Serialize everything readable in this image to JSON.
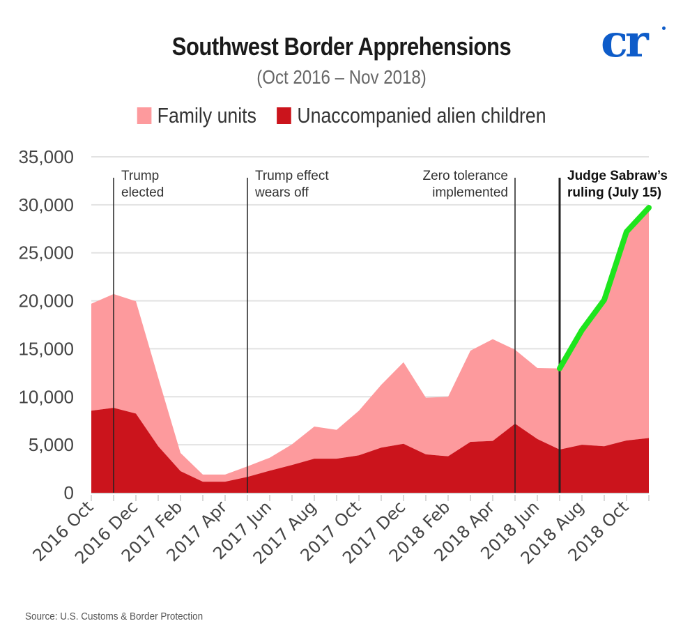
{
  "header": {
    "title": "Southwest Border Apprehensions",
    "subtitle": "(Oct 2016 – Nov 2018)",
    "logo_text": "cr"
  },
  "legend": [
    {
      "label": "Family units",
      "color": "#fd9a9d"
    },
    {
      "label": "Unaccompanied alien children",
      "color": "#cb141c"
    }
  ],
  "source": "Source: U.S. Customs & Border Protection",
  "colors": {
    "family": "#fd9a9d",
    "uac": "#cb141c",
    "highlight": "#1ee51e",
    "gridline": "#e2e2e2",
    "annotation_line": "#222222",
    "brand": "#0e5cc9"
  },
  "chart_data": {
    "type": "area",
    "stacked": true,
    "title": "Southwest Border Apprehensions",
    "subtitle": "(Oct 2016 – Nov 2018)",
    "xlabel": "",
    "ylabel": "",
    "ylim": [
      0,
      35000
    ],
    "yticks": [
      0,
      5000,
      10000,
      15000,
      20000,
      25000,
      30000,
      35000
    ],
    "ytick_labels": [
      "0",
      "5,000",
      "10,000",
      "15,000",
      "20,000",
      "25,000",
      "30,000",
      "35,000"
    ],
    "grid": true,
    "legend_position": "top-center",
    "x": [
      "2016 Oct",
      "2016 Nov",
      "2016 Dec",
      "2017 Jan",
      "2017 Feb",
      "2017 Mar",
      "2017 Apr",
      "2017 May",
      "2017 Jun",
      "2017 Jul",
      "2017 Aug",
      "2017 Sep",
      "2017 Oct",
      "2017 Nov",
      "2017 Dec",
      "2018 Jan",
      "2018 Feb",
      "2018 Mar",
      "2018 Apr",
      "2018 May",
      "2018 Jun",
      "2018 Jul",
      "2018 Aug",
      "2018 Sep",
      "2018 Oct",
      "2018 Nov"
    ],
    "xtick_labels": [
      "2016 Oct",
      "2016 Dec",
      "2017 Feb",
      "2017 Apr",
      "2017 Jun",
      "2017 Aug",
      "2017 Oct",
      "2017 Dec",
      "2018 Feb",
      "2018 Apr",
      "2018 Jun",
      "2018 Aug",
      "2018 Oct"
    ],
    "series": [
      {
        "name": "Unaccompanied alien children",
        "values": [
          8550,
          8850,
          8250,
          4850,
          2250,
          1150,
          1150,
          1650,
          2300,
          2900,
          3550,
          3550,
          3900,
          4700,
          5100,
          4000,
          3800,
          5300,
          5400,
          7200,
          5600,
          4500,
          5000,
          4850,
          5450,
          5700
        ]
      },
      {
        "name": "Family units",
        "values": [
          11150,
          11850,
          11700,
          7150,
          1900,
          750,
          750,
          1100,
          1350,
          2150,
          3350,
          3000,
          4650,
          6550,
          8500,
          5900,
          6200,
          9500,
          10600,
          7700,
          7400,
          8450,
          11950,
          15250,
          21750,
          24000
        ]
      }
    ],
    "annotations": [
      {
        "month": "2016 Nov",
        "lines": [
          "Trump",
          "elected"
        ],
        "bold": false,
        "align": "left"
      },
      {
        "month": "2017 May",
        "lines": [
          "Trump effect",
          "wears off"
        ],
        "bold": false,
        "align": "left"
      },
      {
        "month": "2018 May",
        "lines": [
          "Zero tolerance",
          "implemented"
        ],
        "bold": false,
        "align": "right"
      },
      {
        "month": "2018 Jul",
        "lines": [
          "Judge Sabraw’s",
          "ruling (July 15)"
        ],
        "bold": true,
        "align": "left"
      }
    ],
    "highlight_line": {
      "from": "2018 Jul",
      "to": "2018 Nov",
      "series": "total",
      "color": "#1ee51e"
    }
  }
}
